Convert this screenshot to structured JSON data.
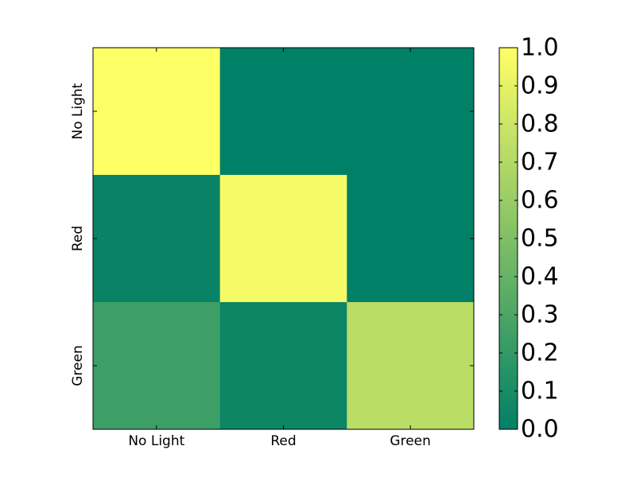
{
  "chart_data": {
    "type": "heatmap",
    "x_categories": [
      "No Light",
      "Red",
      "Green"
    ],
    "y_categories": [
      "No Light",
      "Red",
      "Green"
    ],
    "values": [
      [
        1.0,
        0.0,
        0.0
      ],
      [
        0.03,
        0.96,
        0.0
      ],
      [
        0.24,
        0.05,
        0.73
      ]
    ],
    "colormap": "summer",
    "clim": [
      0.0,
      1.0
    ],
    "colorbar_ticks": [
      {
        "value": 0.0,
        "label": "0.0"
      },
      {
        "value": 0.1,
        "label": "0.1"
      },
      {
        "value": 0.2,
        "label": "0.2"
      },
      {
        "value": 0.3,
        "label": "0.3"
      },
      {
        "value": 0.4,
        "label": "0.4"
      },
      {
        "value": 0.5,
        "label": "0.5"
      },
      {
        "value": 0.6,
        "label": "0.6"
      },
      {
        "value": 0.7,
        "label": "0.7"
      },
      {
        "value": 0.8,
        "label": "0.8"
      },
      {
        "value": 0.9,
        "label": "0.9"
      },
      {
        "value": 1.0,
        "label": "1.0"
      }
    ]
  }
}
